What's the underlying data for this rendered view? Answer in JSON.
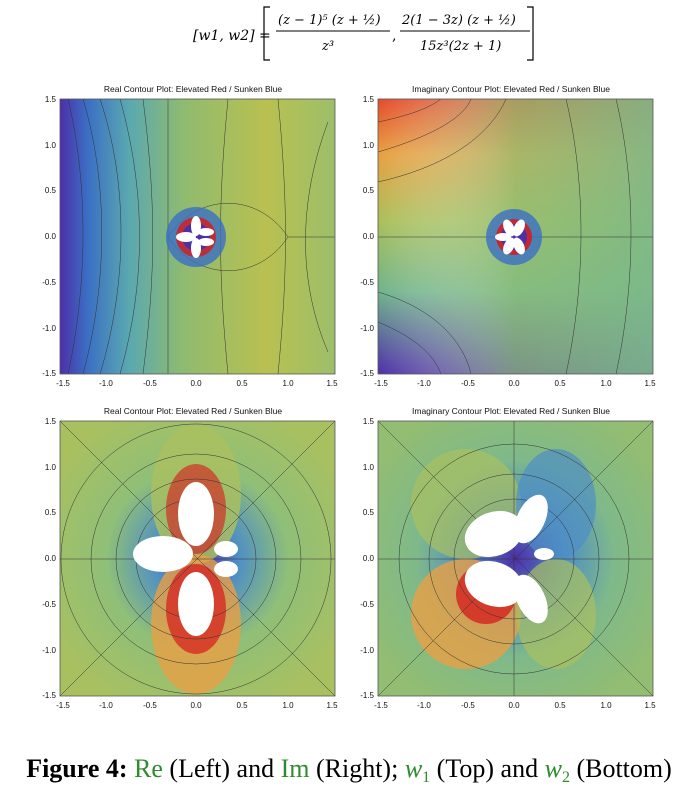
{
  "formula": {
    "lhs": "[w1, w2] =",
    "w1_numerator": "(z − 1)⁵ (z + ½)",
    "w1_denominator": "z³",
    "separator": ",",
    "w2_numerator": "2(1 − 3z) (z + ½)",
    "w2_denominator": "15z³(2z + 1)"
  },
  "panels": [
    {
      "id": "real-w1",
      "title": "Real Contour Plot: Elevated Red / Sunken Blue"
    },
    {
      "id": "imag-w1",
      "title": "Imaginary Contour Plot: Elevated Red / Sunken Blue"
    },
    {
      "id": "real-w2",
      "title": "Real Contour Plot: Elevated Red / Sunken Blue"
    },
    {
      "id": "imag-w2",
      "title": "Imaginary Contour Plot: Elevated Red / Sunken Blue"
    }
  ],
  "axis": {
    "x_ticks": [
      "-1.5",
      "-1.0",
      "-0.5",
      "0.0",
      "0.5",
      "1.0",
      "1.5"
    ],
    "y_ticks": [
      "1.5",
      "1.0",
      "0.5",
      "0.0",
      "-0.5",
      "-1.0",
      "-1.5"
    ],
    "range": [
      -1.5,
      1.5
    ]
  },
  "colors": {
    "elevated": "#d7191c",
    "sunken": "#2c2c9e",
    "neutral": "#a8bf5a",
    "caption_accent": "#2e8b2e"
  },
  "caption": {
    "figure_label": "Figure 4:",
    "re": "Re",
    "left": "(Left) and",
    "im": "Im",
    "right": "(Right);",
    "w1_var": "w",
    "w1_sub": "1",
    "top": "(Top) and",
    "w2_var": "w",
    "w2_sub": "2",
    "bottom": "(Bottom)"
  }
}
